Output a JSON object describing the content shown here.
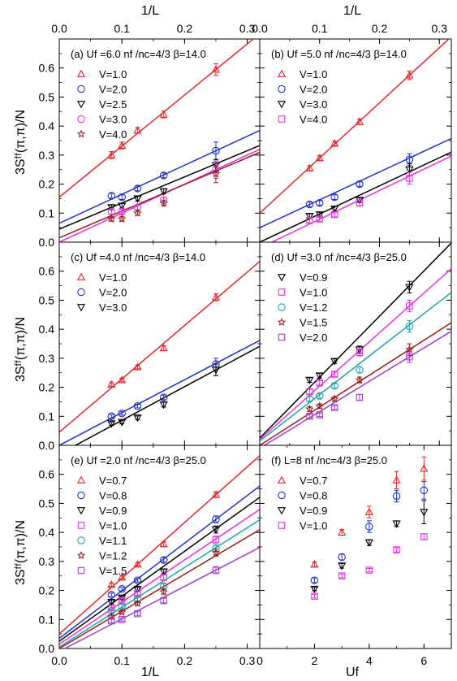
{
  "figure": {
    "ylabel": "3Sᶠᶠ(π,π)/N",
    "top_xlabel": "1/L",
    "bottom_left_xlabel": "1/L",
    "bottom_right_xlabel": "Uf"
  },
  "chart_data": [
    {
      "id": "a",
      "type": "scatter",
      "fit": "line",
      "title": "(a) Uf =6.0  nf /nc=4/3  β=14.0",
      "xlabel": "1/L",
      "ylabel": "3Sᶠᶠ(π,π)/N",
      "xlim": [
        0,
        0.32
      ],
      "ylim": [
        0,
        0.7
      ],
      "xticks": [
        0.0,
        0.1,
        0.2,
        0.3
      ],
      "yticks": [
        0.0,
        0.1,
        0.2,
        0.3,
        0.4,
        0.5,
        0.6
      ],
      "series": [
        {
          "name": "V=1.0",
          "marker": "triangle-up",
          "color": "#e8272b",
          "x": [
            0.0833,
            0.1,
            0.125,
            0.1667,
            0.25
          ],
          "y": [
            0.3,
            0.333,
            0.385,
            0.44,
            0.595
          ],
          "err": [
            0.012,
            0.012,
            0.01,
            0.012,
            0.02
          ],
          "fit": [
            0.155,
            1.76
          ]
        },
        {
          "name": "V=2.0",
          "marker": "circle",
          "color": "#2231c8",
          "x": [
            0.0833,
            0.1,
            0.125,
            0.1667,
            0.25
          ],
          "y": [
            0.16,
            0.155,
            0.185,
            0.23,
            0.315
          ],
          "err": [
            0.008,
            0.008,
            0.008,
            0.008,
            0.03
          ],
          "fit": [
            0.065,
            1.0
          ]
        },
        {
          "name": "V=2.5",
          "marker": "triangle-down",
          "color": "#000000",
          "x": [
            0.0833,
            0.1,
            0.125,
            0.1667,
            0.25
          ],
          "y": [
            0.12,
            0.125,
            0.15,
            0.175,
            0.265
          ],
          "err": [
            0.008,
            0.008,
            0.008,
            0.008,
            0.02
          ],
          "fit": [
            0.045,
            0.9
          ]
        },
        {
          "name": "V=3.0",
          "marker": "circle",
          "color": "#e733e3",
          "x": [
            0.0833,
            0.1,
            0.125,
            0.1667,
            0.25
          ],
          "y": [
            0.105,
            0.105,
            0.12,
            0.145,
            0.25
          ],
          "err": [
            0.008,
            0.008,
            0.008,
            0.01,
            0.03
          ],
          "fit": [
            0.0,
            1.0
          ]
        },
        {
          "name": "V=4.0",
          "marker": "star",
          "color": "#9b1c1c",
          "x": [
            0.0833,
            0.1,
            0.125,
            0.1667,
            0.25
          ],
          "y": [
            0.08,
            0.08,
            0.1,
            0.135,
            0.235
          ],
          "err": [
            0.008,
            0.008,
            0.008,
            0.01,
            0.03
          ],
          "fit": [
            0.015,
            0.92
          ]
        }
      ],
      "fit_colors": [
        "#e8272b",
        "#2231c8",
        "#000000",
        "#e733e3",
        "#9b1c1c"
      ]
    },
    {
      "id": "b",
      "type": "scatter",
      "fit": "line",
      "title": "(b) Uf =5.0  nf /nc=4/3  β=14.0",
      "xlabel": "1/L",
      "ylabel": "3Sᶠᶠ(π,π)/N",
      "xlim": [
        0,
        0.32
      ],
      "ylim": [
        0,
        0.7
      ],
      "xticks": [
        0.0,
        0.1,
        0.2,
        0.3
      ],
      "yticks": [
        0.0,
        0.1,
        0.2,
        0.3,
        0.4,
        0.5,
        0.6
      ],
      "series": [
        {
          "name": "V=1.0",
          "marker": "triangle-up",
          "color": "#e8272b",
          "x": [
            0.0833,
            0.1,
            0.125,
            0.1667,
            0.25
          ],
          "y": [
            0.255,
            0.29,
            0.34,
            0.415,
            0.575
          ],
          "err": [
            0.008,
            0.008,
            0.008,
            0.01,
            0.015
          ],
          "fit": [
            0.1,
            1.9
          ]
        },
        {
          "name": "V=2.0",
          "marker": "circle",
          "color": "#2231c8",
          "x": [
            0.0833,
            0.1,
            0.125,
            0.1667,
            0.25
          ],
          "y": [
            0.13,
            0.135,
            0.155,
            0.2,
            0.285
          ],
          "err": [
            0.008,
            0.008,
            0.008,
            0.008,
            0.02
          ],
          "fit": [
            0.05,
            0.96
          ]
        },
        {
          "name": "V=3.0",
          "marker": "triangle-down",
          "color": "#000000",
          "x": [
            0.0833,
            0.1,
            0.125,
            0.1667,
            0.25
          ],
          "y": [
            0.09,
            0.095,
            0.115,
            0.145,
            0.25
          ],
          "err": [
            0.008,
            0.008,
            0.008,
            0.008,
            0.02
          ],
          "fit": [
            0.0,
            0.97
          ]
        },
        {
          "name": "V=4.0",
          "marker": "square",
          "color": "#e733e3",
          "x": [
            0.0833,
            0.1,
            0.125,
            0.1667,
            0.25
          ],
          "y": [
            0.075,
            0.08,
            0.095,
            0.135,
            0.22
          ],
          "err": [
            0.008,
            0.008,
            0.008,
            0.01,
            0.02
          ],
          "fit": [
            -0.02,
            0.99
          ]
        }
      ],
      "fit_colors": [
        "#e8272b",
        "#2231c8",
        "#000000",
        "#e733e3"
      ]
    },
    {
      "id": "c",
      "type": "scatter",
      "fit": "line",
      "title": "(c) Uf =4.0  nf /nc=4/3  β=14.0",
      "xlabel": "1/L",
      "ylabel": "3Sᶠᶠ(π,π)/N",
      "xlim": [
        0,
        0.32
      ],
      "ylim": [
        0,
        0.7
      ],
      "xticks": [
        0.0,
        0.1,
        0.2,
        0.3
      ],
      "yticks": [
        0.0,
        0.1,
        0.2,
        0.3,
        0.4,
        0.5,
        0.6
      ],
      "series": [
        {
          "name": "V=1.0",
          "marker": "triangle-up",
          "color": "#e8272b",
          "x": [
            0.0833,
            0.1,
            0.125,
            0.1667,
            0.25
          ],
          "y": [
            0.21,
            0.225,
            0.27,
            0.335,
            0.51
          ],
          "err": [
            0.006,
            0.006,
            0.006,
            0.008,
            0.012
          ],
          "fit": [
            0.045,
            1.84
          ]
        },
        {
          "name": "V=2.0",
          "marker": "circle",
          "color": "#2231c8",
          "x": [
            0.0833,
            0.1,
            0.125,
            0.1667,
            0.25
          ],
          "y": [
            0.1,
            0.11,
            0.135,
            0.165,
            0.28
          ],
          "err": [
            0.006,
            0.006,
            0.006,
            0.008,
            0.02
          ],
          "fit": [
            0.0,
            1.13
          ]
        },
        {
          "name": "V=3.0",
          "marker": "triangle-down",
          "color": "#000000",
          "x": [
            0.0833,
            0.1,
            0.125,
            0.1667,
            0.25
          ],
          "y": [
            0.075,
            0.08,
            0.095,
            0.14,
            0.26
          ],
          "err": [
            0.006,
            0.006,
            0.006,
            0.008,
            0.02
          ],
          "fit": [
            -0.03,
            1.16
          ]
        }
      ],
      "fit_colors": [
        "#e8272b",
        "#2231c8",
        "#000000"
      ]
    },
    {
      "id": "d",
      "type": "scatter",
      "fit": "line",
      "title": "(d) Uf =3.0  nf /nc=4/3  β=25.0",
      "xlabel": "1/L",
      "ylabel": "3Sᶠᶠ(π,π)/N",
      "xlim": [
        0,
        0.32
      ],
      "ylim": [
        0,
        0.7
      ],
      "xticks": [
        0.0,
        0.1,
        0.2,
        0.3
      ],
      "yticks": [
        0.0,
        0.1,
        0.2,
        0.3,
        0.4,
        0.5,
        0.6
      ],
      "series": [
        {
          "name": "V=0.9",
          "marker": "triangle-down",
          "color": "#000000",
          "x": [
            0.0833,
            0.1,
            0.125,
            0.1667,
            0.25
          ],
          "y": [
            0.225,
            0.24,
            0.29,
            0.33,
            0.545
          ],
          "err": [
            0.008,
            0.008,
            0.008,
            0.012,
            0.02
          ],
          "fit": [
            0.025,
            2.1
          ]
        },
        {
          "name": "V=1.0",
          "marker": "square",
          "color": "#e733e3",
          "x": [
            0.0833,
            0.1,
            0.125,
            0.1667,
            0.25
          ],
          "y": [
            0.185,
            0.215,
            0.245,
            0.32,
            0.48
          ],
          "err": [
            0.008,
            0.008,
            0.008,
            0.012,
            0.02
          ],
          "fit": [
            0.02,
            1.84
          ]
        },
        {
          "name": "V=1.2",
          "marker": "circle",
          "color": "#21a3a8",
          "x": [
            0.0833,
            0.1,
            0.125,
            0.1667,
            0.25
          ],
          "y": [
            0.16,
            0.17,
            0.205,
            0.26,
            0.41
          ],
          "err": [
            0.008,
            0.008,
            0.008,
            0.01,
            0.02
          ],
          "fit": [
            0.015,
            1.6
          ]
        },
        {
          "name": "V=1.5",
          "marker": "star",
          "color": "#9b1c1c",
          "x": [
            0.0833,
            0.1,
            0.125,
            0.1667,
            0.25
          ],
          "y": [
            0.125,
            0.135,
            0.16,
            0.225,
            0.33
          ],
          "err": [
            0.008,
            0.008,
            0.008,
            0.01,
            0.02
          ],
          "fit": [
            0.0,
            1.32
          ]
        },
        {
          "name": "V=2.0",
          "marker": "square",
          "color": "#a43ad3",
          "x": [
            0.0833,
            0.1,
            0.125,
            0.1667,
            0.25
          ],
          "y": [
            0.1,
            0.105,
            0.13,
            0.165,
            0.305
          ],
          "err": [
            0.006,
            0.006,
            0.006,
            0.01,
            0.02
          ],
          "fit": [
            -0.01,
            1.26
          ]
        }
      ],
      "fit_colors": [
        "#000000",
        "#e733e3",
        "#21a3a8",
        "#9b1c1c",
        "#a43ad3"
      ]
    },
    {
      "id": "e",
      "type": "scatter",
      "fit": "line",
      "title": "(e) Uf =2.0  nf /nc=4/3  β=25.0",
      "xlabel": "1/L",
      "ylabel": "3Sᶠᶠ(π,π)/N",
      "xlim": [
        0,
        0.32
      ],
      "ylim": [
        0,
        0.7
      ],
      "xticks": [
        0.0,
        0.1,
        0.2,
        0.3
      ],
      "yticks": [
        0.0,
        0.1,
        0.2,
        0.3,
        0.4,
        0.5,
        0.6
      ],
      "series": [
        {
          "name": "V=0.7",
          "marker": "triangle-up",
          "color": "#e8272b",
          "x": [
            0.0833,
            0.1,
            0.125,
            0.1667,
            0.25
          ],
          "y": [
            0.22,
            0.245,
            0.29,
            0.36,
            0.53
          ],
          "err": [
            0.006,
            0.006,
            0.006,
            0.008,
            0.01
          ],
          "fit": [
            0.05,
            1.92
          ]
        },
        {
          "name": "V=0.8",
          "marker": "circle",
          "color": "#2231c8",
          "x": [
            0.0833,
            0.1,
            0.125,
            0.1667,
            0.25
          ],
          "y": [
            0.185,
            0.205,
            0.235,
            0.305,
            0.445
          ],
          "err": [
            0.006,
            0.006,
            0.006,
            0.008,
            0.012
          ],
          "fit": [
            0.035,
            1.64
          ]
        },
        {
          "name": "V=0.9",
          "marker": "triangle-down",
          "color": "#000000",
          "x": [
            0.0833,
            0.1,
            0.125,
            0.1667,
            0.25
          ],
          "y": [
            0.16,
            0.175,
            0.205,
            0.265,
            0.41
          ],
          "err": [
            0.006,
            0.006,
            0.006,
            0.008,
            0.012
          ],
          "fit": [
            0.025,
            1.55
          ]
        },
        {
          "name": "V=1.0",
          "marker": "square",
          "color": "#e733e3",
          "x": [
            0.0833,
            0.1,
            0.125,
            0.1667,
            0.25
          ],
          "y": [
            0.14,
            0.165,
            0.19,
            0.245,
            0.375
          ],
          "err": [
            0.006,
            0.006,
            0.006,
            0.008,
            0.012
          ],
          "fit": [
            0.015,
            1.45
          ]
        },
        {
          "name": "V=1.1",
          "marker": "circle",
          "color": "#21a3a8",
          "x": [
            0.0833,
            0.1,
            0.125,
            0.1667,
            0.25
          ],
          "y": [
            0.13,
            0.145,
            0.17,
            0.215,
            0.345
          ],
          "err": [
            0.006,
            0.006,
            0.006,
            0.008,
            0.012
          ],
          "fit": [
            0.005,
            1.37
          ]
        },
        {
          "name": "V=1.2",
          "marker": "star",
          "color": "#9b1c1c",
          "x": [
            0.0833,
            0.1,
            0.125,
            0.1667,
            0.25
          ],
          "y": [
            0.11,
            0.125,
            0.155,
            0.195,
            0.33
          ],
          "err": [
            0.006,
            0.006,
            0.006,
            0.008,
            0.012
          ],
          "fit": [
            0.0,
            1.28
          ]
        },
        {
          "name": "V=1.5",
          "marker": "square",
          "color": "#a43ad3",
          "x": [
            0.0833,
            0.1,
            0.125,
            0.1667,
            0.25
          ],
          "y": [
            0.095,
            0.1,
            0.12,
            0.165,
            0.27
          ],
          "err": [
            0.006,
            0.006,
            0.006,
            0.008,
            0.012
          ],
          "fit": [
            -0.01,
            1.12
          ]
        }
      ],
      "fit_colors": [
        "#e8272b",
        "#2231c8",
        "#000000",
        "#e733e3",
        "#21a3a8",
        "#9b1c1c",
        "#a43ad3"
      ]
    },
    {
      "id": "f",
      "type": "scatter",
      "fit": "none",
      "title": "(f) L=8  nf /nc=4/3  β=25.0",
      "xlabel": "Uf",
      "ylabel": "3Sᶠᶠ(π,π)/N",
      "xlim": [
        0,
        7.0
      ],
      "ylim": [
        0,
        0.7
      ],
      "xticks": [
        0,
        2,
        4,
        6
      ],
      "yticks": [
        0.0,
        0.1,
        0.2,
        0.3,
        0.4,
        0.5,
        0.6
      ],
      "series": [
        {
          "name": "V=0.7",
          "marker": "triangle-up",
          "color": "#e8272b",
          "x": [
            2,
            3,
            4,
            5,
            6
          ],
          "y": [
            0.29,
            0.4,
            0.47,
            0.58,
            0.62
          ],
          "err": [
            0.008,
            0.01,
            0.02,
            0.03,
            0.04
          ]
        },
        {
          "name": "V=0.8",
          "marker": "circle",
          "color": "#2231c8",
          "x": [
            2,
            3,
            4,
            5,
            6
          ],
          "y": [
            0.235,
            0.315,
            0.42,
            0.525,
            0.545
          ],
          "err": [
            0.008,
            0.01,
            0.02,
            0.02,
            0.03
          ]
        },
        {
          "name": "V=0.9",
          "marker": "triangle-down",
          "color": "#000000",
          "x": [
            2,
            3,
            4,
            5,
            6
          ],
          "y": [
            0.205,
            0.285,
            0.365,
            0.43,
            0.47
          ],
          "err": [
            0.006,
            0.008,
            0.01,
            0.01,
            0.04
          ]
        },
        {
          "name": "V=1.0",
          "marker": "square",
          "color": "#e733e3",
          "x": [
            2,
            3,
            4,
            5,
            6
          ],
          "y": [
            0.18,
            0.25,
            0.27,
            0.34,
            0.385
          ],
          "err": [
            0.006,
            0.006,
            0.006,
            0.008,
            0.01
          ]
        }
      ],
      "fit_colors": []
    }
  ]
}
